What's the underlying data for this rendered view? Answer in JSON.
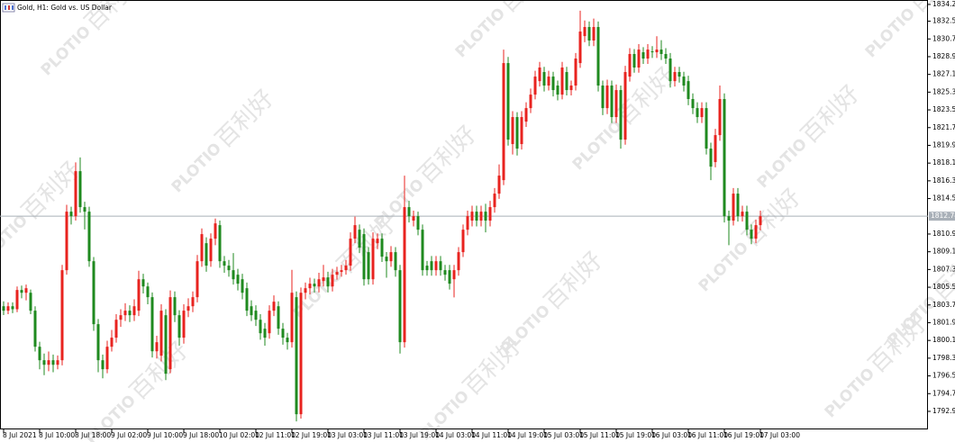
{
  "chart_data": {
    "type": "candlestick",
    "title": "Gold, H1: Gold vs. US Dollar",
    "watermark": {
      "brand": "PLOTIO",
      "text": "百利好"
    },
    "up_color": "#e8231f",
    "down_color": "#1f8a1f",
    "last_price": 1812.74,
    "ylim": [
      1791.1,
      1834.5
    ],
    "yticks": [
      1834.23,
      1832.53,
      1830.73,
      1828.93,
      1827.13,
      1825.33,
      1823.53,
      1821.73,
      1819.93,
      1818.13,
      1816.33,
      1814.53,
      1810.93,
      1809.13,
      1807.33,
      1805.53,
      1803.73,
      1801.93,
      1800.13,
      1798.33,
      1796.53,
      1794.73,
      1792.93
    ],
    "xticks": [
      {
        "value": 0,
        "label": "8 Jul 2021"
      },
      {
        "value": 8,
        "label": "8 Jul 10:00"
      },
      {
        "value": 16,
        "label": "8 Jul 18:00"
      },
      {
        "value": 24,
        "label": "9 Jul 02:00"
      },
      {
        "value": 32,
        "label": "9 Jul 10:00"
      },
      {
        "value": 40,
        "label": "9 Jul 18:00"
      },
      {
        "value": 48,
        "label": "10 Jul 02:00"
      },
      {
        "value": 56,
        "label": "12 Jul 11:00"
      },
      {
        "value": 64,
        "label": "12 Jul 19:00"
      },
      {
        "value": 72,
        "label": "13 Jul 03:00"
      },
      {
        "value": 80,
        "label": "13 Jul 11:00"
      },
      {
        "value": 88,
        "label": "13 Jul 19:00"
      },
      {
        "value": 96,
        "label": "14 Jul 03:00"
      },
      {
        "value": 104,
        "label": "14 Jul 11:00"
      },
      {
        "value": 112,
        "label": "14 Jul 19:00"
      },
      {
        "value": 120,
        "label": "15 Jul 03:00"
      },
      {
        "value": 128,
        "label": "15 Jul 11:00"
      },
      {
        "value": 136,
        "label": "15 Jul 19:00"
      },
      {
        "value": 144,
        "label": "16 Jul 03:00"
      },
      {
        "value": 152,
        "label": "16 Jul 11:00"
      },
      {
        "value": 160,
        "label": "16 Jul 19:00"
      },
      {
        "value": 168,
        "label": "17 Jul 03:00"
      }
    ],
    "open": [
      1803.6,
      1803.15,
      1803.6,
      1803.3,
      1805.25,
      1804.97,
      1804.97,
      1803.15,
      1799.49,
      1798.12,
      1797.66,
      1798.12,
      1797.66,
      1798.12,
      1807.26,
      1813.2,
      1812.74,
      1817.31,
      1813.66,
      1813.2,
      1808.17,
      1801.78,
      1798.12,
      1797.21,
      1799.49,
      1800.41,
      1802.23,
      1802.69,
      1803.15,
      1802.69,
      1803.15,
      1806.34,
      1805.61,
      1804.52,
      1799.03,
      1798.58,
      1802.69,
      1797.21,
      1804.52,
      1802.69,
      1800.41,
      1803.15,
      1803.6,
      1804.52,
      1808.17,
      1810.0,
      1808.17,
      1810.46,
      1811.83,
      1808.17,
      1807.72,
      1807.26,
      1806.8,
      1806.34,
      1805.43,
      1803.6,
      1803.15,
      1802.23,
      1801.32,
      1800.86,
      1803.15,
      1803.6,
      1801.32,
      1800.41,
      1799.95,
      1804.52,
      1792.64,
      1804.97,
      1805.43,
      1805.89,
      1805.61,
      1806.16,
      1806.53,
      1805.61,
      1806.8,
      1807.08,
      1807.26,
      1807.72,
      1810.46,
      1811.37,
      1810.92,
      1809.09,
      1806.34,
      1810.0,
      1810.46,
      1808.63,
      1808.17,
      1809.09,
      1807.26,
      1799.95,
      1813.66,
      1812.29,
      1812.74,
      1811.37,
      1807.72,
      1808.17,
      1807.26,
      1808.17,
      1807.26,
      1807.26,
      1806.34,
      1807.26,
      1809.09,
      1811.37,
      1812.29,
      1813.2,
      1812.29,
      1813.2,
      1812.29,
      1813.66,
      1815.03,
      1816.4,
      1828.28,
      1820.06,
      1822.8,
      1820.06,
      1822.34,
      1823.71,
      1825.08,
      1826.45,
      1827.37,
      1826.0,
      1826.91,
      1826.0,
      1825.08,
      1827.37,
      1825.54,
      1826.0,
      1828.28,
      1831.02,
      1831.94,
      1830.57,
      1831.94,
      1826.0,
      1823.71,
      1826.0,
      1822.8,
      1825.54,
      1820.51,
      1826.91,
      1829.2,
      1827.83,
      1829.38,
      1828.74,
      1829.47,
      1829.38,
      1829.65,
      1829.2,
      1828.74,
      1826.45,
      1827.37,
      1826.91,
      1826.45,
      1824.63,
      1823.71,
      1822.8,
      1823.71,
      1819.6,
      1818.23,
      1820.97,
      1824.63,
      1812.74,
      1812.29,
      1815.03,
      1812.74,
      1813.2,
      1811.37,
      1810.46,
      1811.83
    ],
    "high": [
      1804.1,
      1804.0,
      1804.0,
      1805.6,
      1805.7,
      1805.8,
      1805.3,
      1803.6,
      1800.0,
      1798.8,
      1799.0,
      1798.7,
      1798.6,
      1807.8,
      1813.9,
      1813.7,
      1818.2,
      1818.7,
      1814.2,
      1813.7,
      1808.6,
      1802.3,
      1798.7,
      1800.1,
      1801.2,
      1802.8,
      1803.3,
      1803.9,
      1803.7,
      1804.3,
      1807.2,
      1806.9,
      1806.0,
      1805.0,
      1800.6,
      1803.8,
      1803.3,
      1805.2,
      1805.1,
      1803.2,
      1803.8,
      1804.4,
      1805.1,
      1808.8,
      1811.5,
      1810.6,
      1811.0,
      1812.5,
      1812.3,
      1808.7,
      1808.3,
      1809.0,
      1807.4,
      1806.9,
      1806.0,
      1804.2,
      1803.7,
      1802.8,
      1801.9,
      1803.7,
      1804.7,
      1804.1,
      1801.9,
      1800.9,
      1807.3,
      1805.1,
      1805.5,
      1806.0,
      1806.5,
      1806.4,
      1807.0,
      1807.8,
      1807.1,
      1807.4,
      1807.6,
      1807.8,
      1808.3,
      1811.1,
      1812.7,
      1811.9,
      1811.5,
      1809.6,
      1811.1,
      1811.0,
      1811.0,
      1809.1,
      1809.7,
      1809.6,
      1807.8,
      1816.86,
      1814.3,
      1813.3,
      1813.2,
      1811.9,
      1808.2,
      1808.7,
      1808.7,
      1808.7,
      1807.8,
      1807.8,
      1807.8,
      1809.6,
      1811.9,
      1813.3,
      1813.8,
      1813.8,
      1813.8,
      1814.0,
      1814.3,
      1815.6,
      1818.0,
      1829.65,
      1828.9,
      1823.4,
      1823.3,
      1823.4,
      1824.3,
      1825.7,
      1827.5,
      1828.4,
      1827.9,
      1827.5,
      1827.4,
      1826.5,
      1828.4,
      1827.9,
      1826.5,
      1829.3,
      1833.6,
      1832.6,
      1832.5,
      1832.8,
      1832.5,
      1826.5,
      1826.6,
      1826.5,
      1826.1,
      1826.0,
      1828.0,
      1829.8,
      1829.7,
      1830.2,
      1829.9,
      1830.2,
      1830.0,
      1831.0,
      1830.6,
      1829.8,
      1829.3,
      1827.9,
      1827.9,
      1827.4,
      1827.0,
      1825.2,
      1824.3,
      1824.3,
      1824.3,
      1820.2,
      1821.6,
      1826.0,
      1825.2,
      1813.3,
      1815.6,
      1815.6,
      1813.8,
      1813.8,
      1811.9,
      1812.4,
      1813.3
    ],
    "low": [
      1802.7,
      1802.8,
      1802.9,
      1803.0,
      1804.4,
      1804.2,
      1802.8,
      1799.0,
      1797.2,
      1796.6,
      1797.0,
      1796.9,
      1797.2,
      1797.6,
      1806.8,
      1811.9,
      1812.3,
      1813.1,
      1811.4,
      1807.6,
      1801.1,
      1796.9,
      1796.29,
      1796.8,
      1799.0,
      1799.9,
      1801.5,
      1802.1,
      1802.0,
      1802.1,
      1802.6,
      1804.9,
      1803.8,
      1798.4,
      1798.3,
      1798.0,
      1796.1,
      1796.8,
      1802.0,
      1799.6,
      1799.8,
      1802.5,
      1803.0,
      1804.0,
      1807.6,
      1807.1,
      1807.6,
      1809.8,
      1807.5,
      1807.0,
      1806.6,
      1805.8,
      1805.2,
      1804.3,
      1802.6,
      1802.1,
      1801.6,
      1800.2,
      1799.6,
      1800.3,
      1802.6,
      1800.7,
      1799.7,
      1799.2,
      1799.4,
      1791.91,
      1792.2,
      1804.3,
      1804.8,
      1805.0,
      1805.0,
      1805.6,
      1805.0,
      1805.1,
      1806.3,
      1806.6,
      1806.8,
      1807.2,
      1810.0,
      1809.0,
      1805.7,
      1805.8,
      1805.8,
      1809.4,
      1808.1,
      1806.5,
      1807.6,
      1806.6,
      1798.8,
      1799.4,
      1812.1,
      1811.7,
      1810.8,
      1806.7,
      1806.7,
      1806.7,
      1806.7,
      1806.7,
      1806.2,
      1805.3,
      1804.5,
      1806.7,
      1808.6,
      1810.8,
      1811.7,
      1811.7,
      1811.7,
      1811.1,
      1811.7,
      1813.1,
      1814.5,
      1815.9,
      1819.9,
      1819.0,
      1818.9,
      1819.5,
      1821.8,
      1823.2,
      1824.6,
      1825.9,
      1825.4,
      1825.5,
      1824.9,
      1824.5,
      1824.6,
      1825.0,
      1825.0,
      1825.5,
      1827.8,
      1830.4,
      1830.0,
      1830.0,
      1825.4,
      1823.0,
      1823.1,
      1822.2,
      1822.2,
      1819.6,
      1820.0,
      1826.4,
      1827.3,
      1827.3,
      1828.2,
      1828.2,
      1828.8,
      1828.8,
      1828.6,
      1828.2,
      1825.8,
      1825.9,
      1826.3,
      1825.4,
      1824.0,
      1823.1,
      1822.2,
      1822.2,
      1819.0,
      1816.4,
      1817.7,
      1820.4,
      1812.1,
      1809.8,
      1811.8,
      1812.2,
      1812.2,
      1810.8,
      1809.9,
      1810.0,
      1811.3
    ],
    "close": [
      1803.15,
      1803.6,
      1803.3,
      1805.25,
      1804.97,
      1805.43,
      1803.15,
      1799.49,
      1798.12,
      1797.66,
      1798.12,
      1797.66,
      1798.12,
      1807.26,
      1813.2,
      1812.74,
      1817.31,
      1813.66,
      1813.2,
      1808.17,
      1801.78,
      1798.12,
      1797.21,
      1799.49,
      1800.41,
      1802.23,
      1802.69,
      1803.15,
      1802.69,
      1803.6,
      1806.34,
      1805.61,
      1804.52,
      1799.03,
      1799.95,
      1803.15,
      1796.75,
      1804.52,
      1802.69,
      1800.41,
      1803.15,
      1803.6,
      1804.52,
      1808.17,
      1810.92,
      1807.72,
      1810.46,
      1812.01,
      1808.17,
      1807.72,
      1807.26,
      1806.34,
      1805.89,
      1804.97,
      1803.15,
      1802.69,
      1802.23,
      1800.86,
      1800.41,
      1803.15,
      1804.06,
      1801.32,
      1800.41,
      1799.95,
      1804.97,
      1792.64,
      1804.97,
      1805.43,
      1805.89,
      1805.61,
      1806.34,
      1806.53,
      1805.61,
      1806.8,
      1807.08,
      1807.26,
      1807.72,
      1810.46,
      1811.83,
      1809.55,
      1806.34,
      1806.34,
      1810.46,
      1810.46,
      1808.63,
      1808.17,
      1809.09,
      1807.26,
      1799.95,
      1813.66,
      1812.74,
      1812.74,
      1811.37,
      1807.26,
      1807.26,
      1807.26,
      1808.17,
      1807.26,
      1806.8,
      1805.89,
      1807.26,
      1809.09,
      1811.37,
      1812.74,
      1813.2,
      1812.29,
      1813.2,
      1812.29,
      1813.66,
      1815.03,
      1816.86,
      1828.28,
      1820.51,
      1822.8,
      1819.6,
      1822.8,
      1823.71,
      1825.08,
      1826.91,
      1827.83,
      1826.0,
      1826.91,
      1825.54,
      1825.08,
      1827.83,
      1825.54,
      1826.0,
      1828.74,
      1831.48,
      1831.94,
      1830.57,
      1831.94,
      1826.0,
      1823.71,
      1826.0,
      1822.8,
      1825.54,
      1820.51,
      1827.37,
      1829.2,
      1827.83,
      1829.65,
      1828.74,
      1829.65,
      1829.38,
      1829.65,
      1829.2,
      1828.74,
      1826.45,
      1827.37,
      1826.91,
      1826.0,
      1824.63,
      1823.71,
      1822.8,
      1823.71,
      1819.6,
      1817.77,
      1820.97,
      1824.63,
      1812.74,
      1812.29,
      1815.03,
      1812.74,
      1813.2,
      1811.37,
      1810.46,
      1811.83,
      1812.74
    ]
  }
}
